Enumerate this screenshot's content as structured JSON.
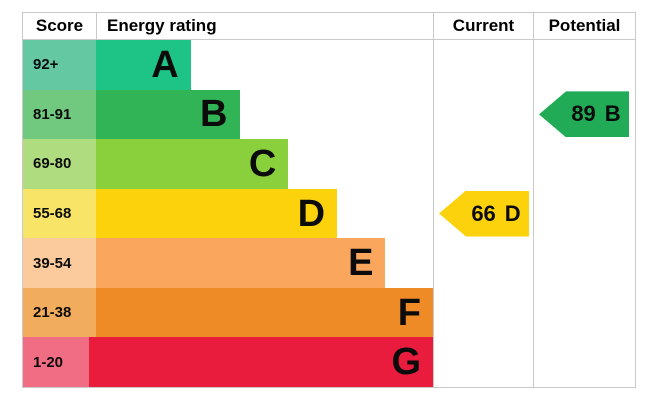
{
  "header": {
    "score": "Score",
    "energy_rating": "Energy rating",
    "current": "Current",
    "potential": "Potential"
  },
  "bands": [
    {
      "score_range": "92+",
      "letter": "A",
      "color": "#1dc486",
      "tint_color": "#64c8a2",
      "bar_width_pct": 23.1
    },
    {
      "score_range": "81-91",
      "letter": "B",
      "color": "#30b455",
      "tint_color": "#71c97f",
      "bar_width_pct": 35.0
    },
    {
      "score_range": "69-80",
      "letter": "C",
      "color": "#8ad03d",
      "tint_color": "#afdc7f",
      "bar_width_pct": 46.9
    },
    {
      "score_range": "55-68",
      "letter": "D",
      "color": "#fbd20b",
      "tint_color": "#f8e467",
      "bar_width_pct": 58.8
    },
    {
      "score_range": "39-54",
      "letter": "E",
      "color": "#faa65d",
      "tint_color": "#fbcb9d",
      "bar_width_pct": 70.6
    },
    {
      "score_range": "21-38",
      "letter": "F",
      "color": "#ee8b27",
      "tint_color": "#f2ac5e",
      "bar_width_pct": 82.5
    },
    {
      "score_range": "1-20",
      "letter": "G",
      "color": "#e91c3d",
      "tint_color": "#f06d84",
      "bar_width_pct": 94.4
    }
  ],
  "current": {
    "value": "66",
    "band": "D",
    "band_index": 3,
    "color": "#fbd20b"
  },
  "potential": {
    "value": "89",
    "band": "B",
    "band_index": 1,
    "color": "#21ab57"
  },
  "chart_data": {
    "type": "bar",
    "title": "Energy rating (EPC) band chart",
    "orientation": "horizontal",
    "categories": [
      "A",
      "B",
      "C",
      "D",
      "E",
      "F",
      "G"
    ],
    "score_ranges": [
      "92+",
      "81-91",
      "69-80",
      "55-68",
      "39-54",
      "21-38",
      "1-20"
    ],
    "bar_width_pct": [
      23.1,
      35.0,
      46.9,
      58.8,
      70.6,
      82.5,
      94.4
    ],
    "band_colors": [
      "#1dc486",
      "#30b455",
      "#8ad03d",
      "#fbd20b",
      "#faa65d",
      "#ee8b27",
      "#e91c3d"
    ],
    "columns": [
      "Score",
      "Energy rating",
      "Current",
      "Potential"
    ],
    "current": {
      "score": 66,
      "band": "D"
    },
    "potential": {
      "score": 89,
      "band": "B"
    }
  }
}
